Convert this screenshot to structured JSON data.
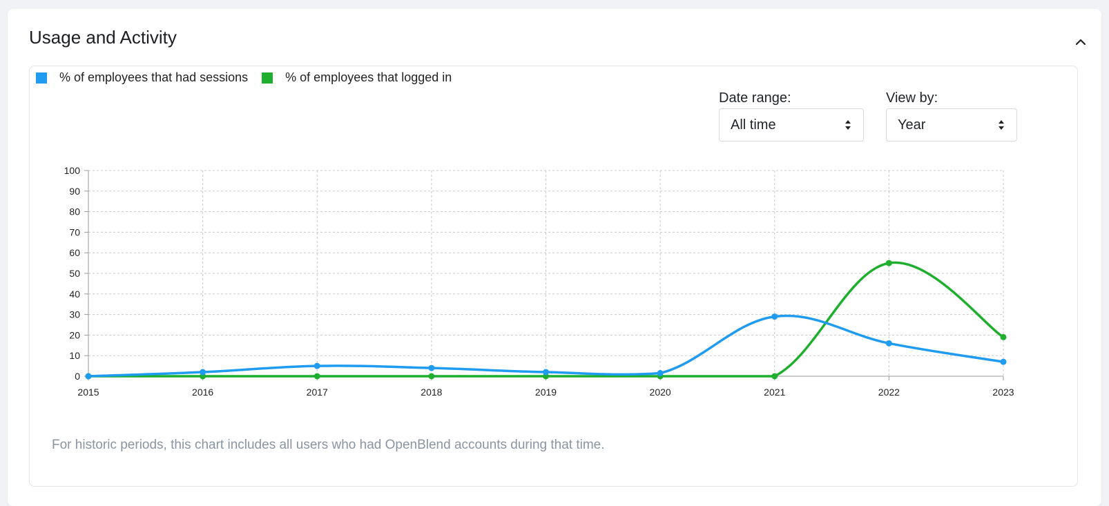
{
  "card": {
    "title": "Usage and Activity"
  },
  "controls": {
    "date_range": {
      "label": "Date range:",
      "value": "All time"
    },
    "view_by": {
      "label": "View by:",
      "value": "Year"
    }
  },
  "footnote": "For historic periods, this chart includes all users who had OpenBlend accounts during that time.",
  "colors": {
    "sessions": "#1f9bf0",
    "logged_in": "#1fae2e"
  },
  "chart_data": {
    "type": "line",
    "title": "",
    "xlabel": "",
    "ylabel": "",
    "x": [
      "2015",
      "2016",
      "2017",
      "2018",
      "2019",
      "2020",
      "2021",
      "2022",
      "2023"
    ],
    "yticks": [
      "0",
      "10",
      "20",
      "30",
      "40",
      "50",
      "60",
      "70",
      "80",
      "90",
      "100"
    ],
    "ylim": [
      0,
      100
    ],
    "grid": true,
    "legend_position": "top-left",
    "series": [
      {
        "name": "% of employees that had sessions",
        "values": [
          0,
          2,
          5,
          4,
          2,
          1.5,
          29,
          16,
          7
        ]
      },
      {
        "name": "% of employees that logged in",
        "values": [
          0,
          0,
          0,
          0,
          0,
          0,
          0,
          55,
          19
        ]
      }
    ]
  }
}
